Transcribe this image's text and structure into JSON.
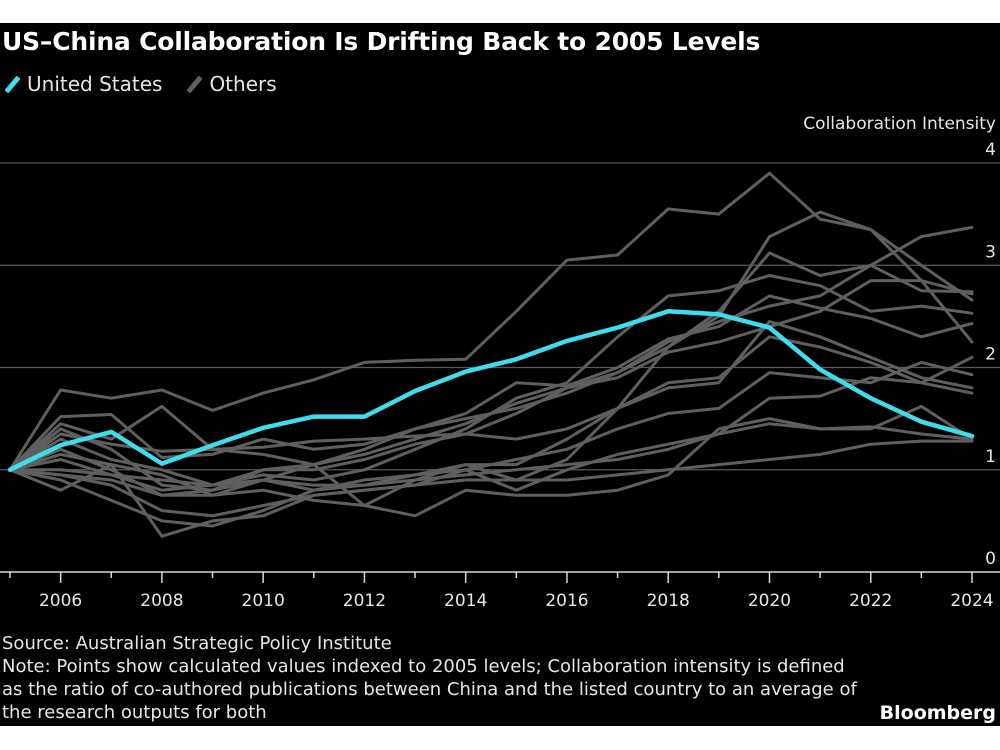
{
  "title": "US–China Collaboration Is Drifting Back to 2005 Levels",
  "legend": [
    {
      "label": "United States",
      "color": "#3fdceb"
    },
    {
      "label": "Others",
      "color": "#5f5f5f"
    }
  ],
  "footer": {
    "source": "Source: Australian Strategic Policy Institute",
    "note_lines": [
      "Note: Points show calculated values indexed to 2005 levels; Collaboration intensity is defined",
      "as the ratio of co-authored publications between China and the listed country to an average of",
      "the research outputs for both"
    ],
    "brand": "Bloomberg"
  },
  "chart_data": {
    "type": "line",
    "title": "US–China Collaboration Is Drifting Back to 2005 Levels",
    "ylabel": "Collaboration Intensity",
    "xlabel": "",
    "x": [
      2005,
      2006,
      2007,
      2008,
      2009,
      2010,
      2011,
      2012,
      2013,
      2014,
      2015,
      2016,
      2017,
      2018,
      2019,
      2020,
      2021,
      2022,
      2023,
      2024
    ],
    "xticks": [
      "2006",
      "2008",
      "2010",
      "2012",
      "2014",
      "2016",
      "2018",
      "2020",
      "2022",
      "2024"
    ],
    "yticks": [
      "0",
      "1",
      "2",
      "3",
      "4"
    ],
    "xlim": [
      2005,
      2024
    ],
    "ylim": [
      0,
      4
    ],
    "grid": "horizontal",
    "legend_placement": "top-left",
    "series": [
      {
        "name": "United States",
        "color": "#3fdceb",
        "values": [
          1.0,
          1.24,
          1.37,
          1.06,
          1.24,
          1.41,
          1.52,
          1.52,
          1.77,
          1.96,
          2.08,
          2.26,
          2.39,
          2.55,
          2.52,
          2.39,
          1.98,
          1.7,
          1.47,
          1.33
        ]
      },
      {
        "name": "Others",
        "color": "#5f5f5f",
        "values": [
          1.0,
          1.78,
          1.7,
          1.78,
          1.58,
          1.75,
          1.88,
          2.05,
          2.07,
          2.08,
          2.55,
          3.05,
          3.1,
          3.55,
          3.5,
          3.9,
          3.45,
          3.35,
          2.85,
          2.72
        ]
      },
      {
        "name": "Others",
        "color": "#5f5f5f",
        "values": [
          1.0,
          1.52,
          1.54,
          1.12,
          1.15,
          1.3,
          1.2,
          1.25,
          1.4,
          1.5,
          1.6,
          1.75,
          1.95,
          2.2,
          2.5,
          3.28,
          3.52,
          3.35,
          3.0,
          2.66
        ]
      },
      {
        "name": "Others",
        "color": "#5f5f5f",
        "values": [
          1.0,
          1.4,
          1.2,
          0.85,
          0.8,
          1.0,
          1.0,
          1.1,
          1.25,
          1.35,
          1.55,
          1.8,
          1.95,
          2.25,
          2.45,
          2.6,
          2.7,
          3.0,
          3.28,
          3.37
        ]
      },
      {
        "name": "Others",
        "color": "#5f5f5f",
        "values": [
          1.0,
          1.2,
          1.0,
          0.75,
          0.8,
          0.9,
          0.8,
          0.85,
          0.95,
          1.05,
          0.9,
          1.1,
          1.6,
          2.2,
          2.55,
          3.12,
          2.9,
          3.0,
          2.75,
          2.74
        ]
      },
      {
        "name": "Others",
        "color": "#5f5f5f",
        "values": [
          1.0,
          1.3,
          1.1,
          1.0,
          0.85,
          0.95,
          0.9,
          1.0,
          1.2,
          1.4,
          1.7,
          1.85,
          2.3,
          2.7,
          2.75,
          2.9,
          2.8,
          2.55,
          2.6,
          2.53
        ]
      },
      {
        "name": "Others",
        "color": "#5f5f5f",
        "values": [
          1.0,
          1.45,
          1.3,
          1.62,
          1.2,
          1.15,
          1.05,
          1.2,
          1.4,
          1.55,
          1.85,
          1.82,
          2.0,
          2.28,
          2.4,
          2.7,
          2.58,
          2.48,
          2.3,
          2.43
        ]
      },
      {
        "name": "Others",
        "color": "#5f5f5f",
        "values": [
          1.0,
          1.1,
          0.95,
          0.8,
          0.85,
          1.0,
          1.05,
          1.15,
          1.3,
          1.45,
          1.65,
          1.8,
          1.9,
          2.15,
          2.25,
          2.4,
          2.55,
          2.85,
          2.85,
          2.25
        ]
      },
      {
        "name": "Others",
        "color": "#5f5f5f",
        "values": [
          1.0,
          1.35,
          1.25,
          1.18,
          1.2,
          1.22,
          1.28,
          1.3,
          1.33,
          1.35,
          1.3,
          1.4,
          1.6,
          1.8,
          1.85,
          2.45,
          2.3,
          2.1,
          1.9,
          1.8
        ]
      },
      {
        "name": "Others",
        "color": "#5f5f5f",
        "values": [
          1.0,
          1.15,
          1.05,
          0.95,
          0.75,
          0.9,
          1.05,
          0.65,
          0.9,
          1.05,
          1.05,
          1.3,
          1.6,
          1.85,
          1.9,
          2.3,
          2.2,
          2.05,
          1.85,
          2.1
        ]
      },
      {
        "name": "Others",
        "color": "#5f5f5f",
        "values": [
          1.0,
          0.9,
          0.7,
          0.5,
          0.45,
          0.6,
          0.8,
          0.9,
          0.95,
          1.0,
          1.1,
          1.2,
          1.4,
          1.55,
          1.6,
          1.95,
          1.9,
          1.85,
          2.05,
          1.93
        ]
      },
      {
        "name": "Others",
        "color": "#5f5f5f",
        "values": [
          1.0,
          0.8,
          1.05,
          0.35,
          0.5,
          0.55,
          0.75,
          0.8,
          0.85,
          1.0,
          0.8,
          1.0,
          1.15,
          1.25,
          1.35,
          1.7,
          1.72,
          1.9,
          1.85,
          1.75
        ]
      },
      {
        "name": "Others",
        "color": "#5f5f5f",
        "values": [
          1.0,
          0.95,
          0.9,
          0.75,
          0.75,
          0.8,
          0.7,
          0.65,
          0.55,
          0.8,
          0.75,
          0.75,
          0.8,
          0.95,
          1.4,
          1.5,
          1.4,
          1.4,
          1.62,
          1.3
        ]
      },
      {
        "name": "Others",
        "color": "#5f5f5f",
        "values": [
          1.0,
          1.0,
          0.95,
          0.9,
          0.85,
          0.9,
          0.85,
          0.85,
          0.9,
          0.95,
          1.0,
          1.05,
          1.1,
          1.2,
          1.35,
          1.45,
          1.4,
          1.42,
          1.35,
          1.3
        ]
      },
      {
        "name": "Others",
        "color": "#5f5f5f",
        "values": [
          1.0,
          0.95,
          0.85,
          0.6,
          0.55,
          0.65,
          0.75,
          0.8,
          0.85,
          0.9,
          0.9,
          0.9,
          0.95,
          1.0,
          1.05,
          1.1,
          1.15,
          1.25,
          1.28,
          1.28
        ]
      }
    ]
  }
}
